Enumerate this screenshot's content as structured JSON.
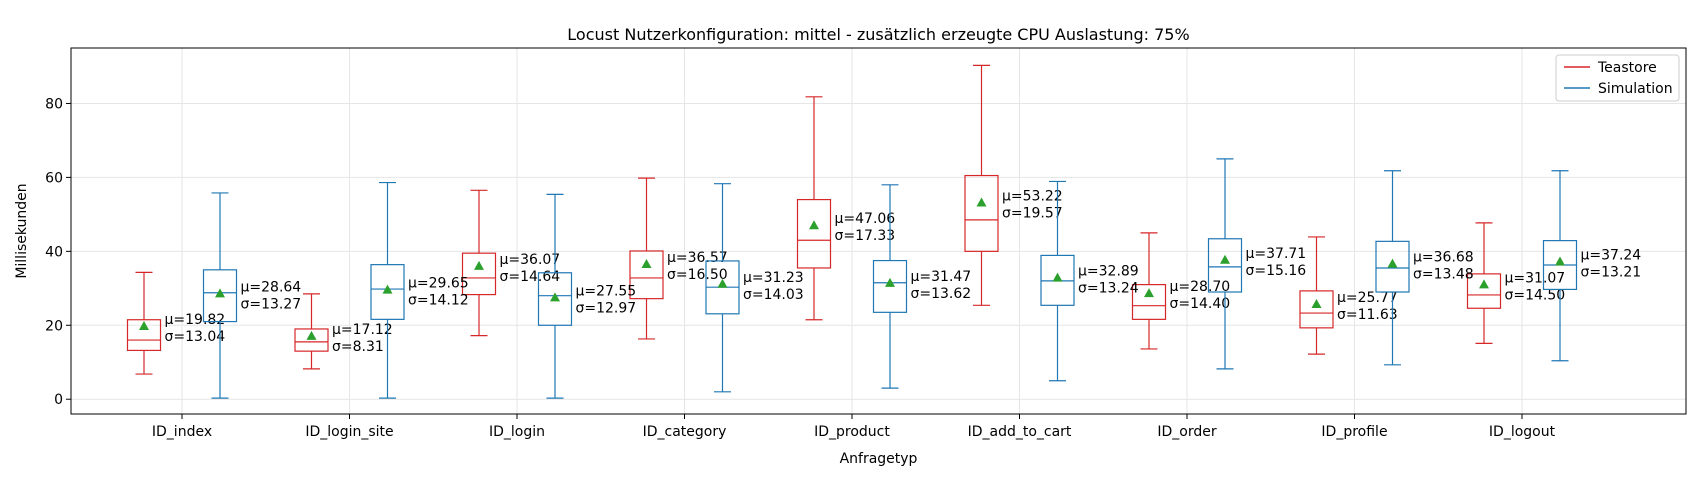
{
  "chart_data": {
    "type": "boxplot",
    "title": "Locust Nutzerkonfiguration: mittel - zusätzlich erzeugte CPU Auslastung: 75%",
    "xlabel": "Anfragetyp",
    "ylabel": "Millisekunden",
    "ylim": [
      -4,
      95
    ],
    "yticks": [
      0,
      20,
      40,
      60,
      80
    ],
    "grid": true,
    "legend_position": "top-right",
    "categories": [
      "ID_index",
      "ID_login_site",
      "ID_login",
      "ID_category",
      "ID_product",
      "ID_add_to_cart",
      "ID_order",
      "ID_profile",
      "ID_logout"
    ],
    "series": [
      {
        "name": "Teastore",
        "color": "#d62728",
        "boxes": [
          {
            "whislo": 6.8,
            "q1": 13.2,
            "med": 16.0,
            "q3": 21.5,
            "whishi": 34.3,
            "mean": 19.82,
            "mean_label": "μ=19.82",
            "std_label": "σ=13.04"
          },
          {
            "whislo": 8.2,
            "q1": 13.0,
            "med": 15.5,
            "q3": 19.0,
            "whishi": 28.5,
            "mean": 17.12,
            "mean_label": "μ=17.12",
            "std_label": "σ=8.31"
          },
          {
            "whislo": 17.2,
            "q1": 28.3,
            "med": 32.8,
            "q3": 39.5,
            "whishi": 56.5,
            "mean": 36.07,
            "mean_label": "μ=36.07",
            "std_label": "σ=14.64"
          },
          {
            "whislo": 16.3,
            "q1": 27.2,
            "med": 32.8,
            "q3": 40.1,
            "whishi": 59.8,
            "mean": 36.57,
            "mean_label": "μ=36.57",
            "std_label": "σ=16.50"
          },
          {
            "whislo": 21.5,
            "q1": 35.5,
            "med": 43.0,
            "q3": 54.0,
            "whishi": 81.8,
            "mean": 47.06,
            "mean_label": "μ=47.06",
            "std_label": "σ=17.33"
          },
          {
            "whislo": 25.4,
            "q1": 40.0,
            "med": 48.5,
            "q3": 60.5,
            "whishi": 90.3,
            "mean": 53.22,
            "mean_label": "μ=53.22",
            "std_label": "σ=19.57"
          },
          {
            "whislo": 13.6,
            "q1": 21.6,
            "med": 25.3,
            "q3": 31.0,
            "whishi": 45.0,
            "mean": 28.7,
            "mean_label": "μ=28.70",
            "std_label": "σ=14.40"
          },
          {
            "whislo": 12.2,
            "q1": 19.3,
            "med": 23.3,
            "q3": 29.3,
            "whishi": 43.9,
            "mean": 25.77,
            "mean_label": "μ=25.77",
            "std_label": "σ=11.63"
          },
          {
            "whislo": 15.1,
            "q1": 24.6,
            "med": 28.2,
            "q3": 33.9,
            "whishi": 47.7,
            "mean": 31.07,
            "mean_label": "μ=31.07",
            "std_label": "σ=14.50"
          }
        ]
      },
      {
        "name": "Simulation",
        "color": "#1f77b4",
        "boxes": [
          {
            "whislo": 0.3,
            "q1": 21.0,
            "med": 28.8,
            "q3": 35.0,
            "whishi": 55.8,
            "mean": 28.64,
            "mean_label": "μ=28.64",
            "std_label": "σ=13.27"
          },
          {
            "whislo": 0.3,
            "q1": 21.6,
            "med": 29.8,
            "q3": 36.4,
            "whishi": 58.6,
            "mean": 29.65,
            "mean_label": "μ=29.65",
            "std_label": "σ=14.12"
          },
          {
            "whislo": 0.3,
            "q1": 20.0,
            "med": 28.0,
            "q3": 34.2,
            "whishi": 55.4,
            "mean": 27.55,
            "mean_label": "μ=27.55",
            "std_label": "σ=12.97"
          },
          {
            "whislo": 2.0,
            "q1": 23.1,
            "med": 30.3,
            "q3": 37.4,
            "whishi": 58.3,
            "mean": 31.23,
            "mean_label": "μ=31.23",
            "std_label": "σ=14.03"
          },
          {
            "whislo": 3.0,
            "q1": 23.5,
            "med": 31.5,
            "q3": 37.5,
            "whishi": 58.0,
            "mean": 31.47,
            "mean_label": "μ=31.47",
            "std_label": "σ=13.62"
          },
          {
            "whislo": 5.0,
            "q1": 25.4,
            "med": 32.0,
            "q3": 38.9,
            "whishi": 58.9,
            "mean": 32.89,
            "mean_label": "μ=32.89",
            "std_label": "σ=13.24"
          },
          {
            "whislo": 8.2,
            "q1": 29.0,
            "med": 35.8,
            "q3": 43.4,
            "whishi": 65.0,
            "mean": 37.71,
            "mean_label": "μ=37.71",
            "std_label": "σ=15.16"
          },
          {
            "whislo": 9.3,
            "q1": 29.0,
            "med": 35.5,
            "q3": 42.7,
            "whishi": 61.8,
            "mean": 36.68,
            "mean_label": "μ=36.68",
            "std_label": "σ=13.48"
          },
          {
            "whislo": 10.4,
            "q1": 29.7,
            "med": 36.3,
            "q3": 42.9,
            "whishi": 61.8,
            "mean": 37.24,
            "mean_label": "μ=37.24",
            "std_label": "σ=13.21"
          }
        ]
      }
    ],
    "mean_marker_color": "#2ca02c"
  }
}
